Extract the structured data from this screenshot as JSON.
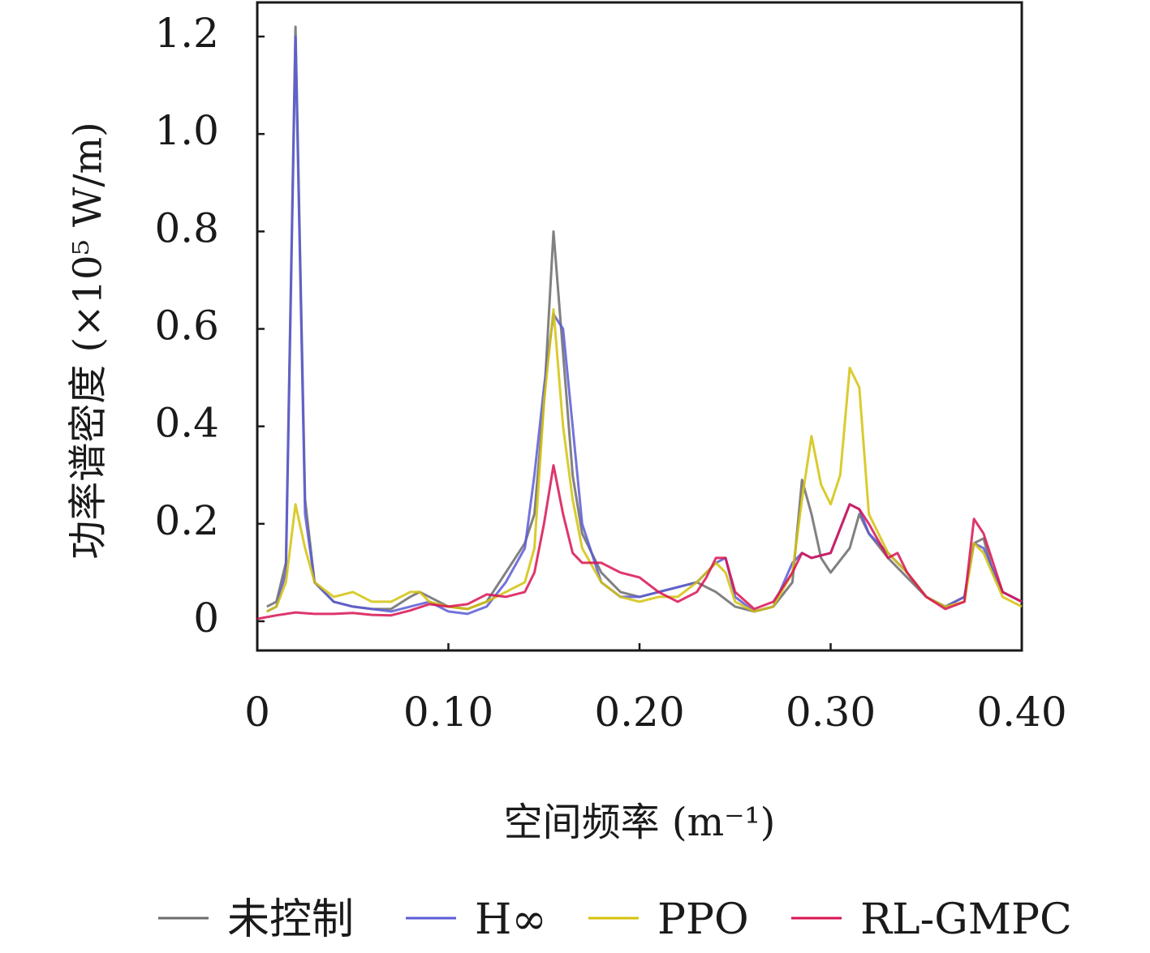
{
  "chart_data": {
    "type": "line",
    "xlabel": "空间频率 (m⁻¹)",
    "ylabel": "功率谱密度 (×10⁵ W/m)",
    "xlim": [
      0,
      0.4
    ],
    "ylim": [
      -0.06,
      1.27
    ],
    "xticks": [
      0,
      0.1,
      0.2,
      0.3,
      0.4
    ],
    "xtick_labels": [
      "0",
      "0.10",
      "0.20",
      "0.30",
      "0.40"
    ],
    "yticks": [
      0,
      0.2,
      0.4,
      0.6,
      0.8,
      1.0,
      1.2
    ],
    "ytick_labels": [
      "0",
      "0.2",
      "0.4",
      "0.6",
      "0.8",
      "1.0",
      "1.2"
    ],
    "grid": false,
    "legend_position": "bottom",
    "series": [
      {
        "name": "未控制",
        "color": "#6b6b6b",
        "points": [
          [
            0.005,
            0.03
          ],
          [
            0.01,
            0.04
          ],
          [
            0.015,
            0.12
          ],
          [
            0.02,
            1.22
          ],
          [
            0.025,
            0.25
          ],
          [
            0.03,
            0.08
          ],
          [
            0.04,
            0.04
          ],
          [
            0.05,
            0.03
          ],
          [
            0.06,
            0.025
          ],
          [
            0.07,
            0.025
          ],
          [
            0.08,
            0.05
          ],
          [
            0.085,
            0.06
          ],
          [
            0.09,
            0.05
          ],
          [
            0.1,
            0.03
          ],
          [
            0.11,
            0.025
          ],
          [
            0.12,
            0.04
          ],
          [
            0.13,
            0.1
          ],
          [
            0.14,
            0.16
          ],
          [
            0.145,
            0.22
          ],
          [
            0.15,
            0.45
          ],
          [
            0.155,
            0.8
          ],
          [
            0.16,
            0.55
          ],
          [
            0.165,
            0.3
          ],
          [
            0.17,
            0.18
          ],
          [
            0.18,
            0.1
          ],
          [
            0.19,
            0.06
          ],
          [
            0.2,
            0.05
          ],
          [
            0.21,
            0.06
          ],
          [
            0.22,
            0.07
          ],
          [
            0.23,
            0.08
          ],
          [
            0.24,
            0.06
          ],
          [
            0.25,
            0.03
          ],
          [
            0.26,
            0.02
          ],
          [
            0.27,
            0.03
          ],
          [
            0.28,
            0.08
          ],
          [
            0.285,
            0.29
          ],
          [
            0.29,
            0.22
          ],
          [
            0.295,
            0.13
          ],
          [
            0.3,
            0.1
          ],
          [
            0.31,
            0.15
          ],
          [
            0.315,
            0.22
          ],
          [
            0.32,
            0.18
          ],
          [
            0.33,
            0.13
          ],
          [
            0.34,
            0.09
          ],
          [
            0.35,
            0.05
          ],
          [
            0.36,
            0.03
          ],
          [
            0.37,
            0.05
          ],
          [
            0.375,
            0.16
          ],
          [
            0.38,
            0.17
          ],
          [
            0.385,
            0.1
          ],
          [
            0.39,
            0.06
          ],
          [
            0.4,
            0.04
          ]
        ]
      },
      {
        "name": "H∞",
        "color": "#5b5bd6",
        "points": [
          [
            0.005,
            0.02
          ],
          [
            0.01,
            0.03
          ],
          [
            0.015,
            0.1
          ],
          [
            0.02,
            1.2
          ],
          [
            0.025,
            0.22
          ],
          [
            0.03,
            0.08
          ],
          [
            0.04,
            0.04
          ],
          [
            0.05,
            0.03
          ],
          [
            0.06,
            0.025
          ],
          [
            0.07,
            0.02
          ],
          [
            0.08,
            0.03
          ],
          [
            0.09,
            0.04
          ],
          [
            0.1,
            0.02
          ],
          [
            0.11,
            0.015
          ],
          [
            0.12,
            0.03
          ],
          [
            0.13,
            0.08
          ],
          [
            0.14,
            0.15
          ],
          [
            0.145,
            0.3
          ],
          [
            0.15,
            0.48
          ],
          [
            0.155,
            0.63
          ],
          [
            0.16,
            0.6
          ],
          [
            0.165,
            0.4
          ],
          [
            0.17,
            0.2
          ],
          [
            0.18,
            0.08
          ],
          [
            0.19,
            0.05
          ],
          [
            0.2,
            0.05
          ],
          [
            0.21,
            0.06
          ],
          [
            0.22,
            0.07
          ],
          [
            0.23,
            0.08
          ],
          [
            0.24,
            0.12
          ],
          [
            0.245,
            0.13
          ],
          [
            0.25,
            0.05
          ],
          [
            0.26,
            0.02
          ],
          [
            0.27,
            0.03
          ],
          [
            0.28,
            0.12
          ],
          [
            0.285,
            0.14
          ],
          [
            0.29,
            0.13
          ],
          [
            0.3,
            0.14
          ],
          [
            0.31,
            0.24
          ],
          [
            0.315,
            0.23
          ],
          [
            0.32,
            0.18
          ],
          [
            0.33,
            0.14
          ],
          [
            0.34,
            0.1
          ],
          [
            0.35,
            0.05
          ],
          [
            0.36,
            0.03
          ],
          [
            0.37,
            0.05
          ],
          [
            0.375,
            0.16
          ],
          [
            0.38,
            0.15
          ],
          [
            0.39,
            0.06
          ],
          [
            0.4,
            0.04
          ]
        ]
      },
      {
        "name": "PPO",
        "color": "#d4c20a",
        "points": [
          [
            0.005,
            0.02
          ],
          [
            0.01,
            0.03
          ],
          [
            0.015,
            0.08
          ],
          [
            0.02,
            0.24
          ],
          [
            0.025,
            0.15
          ],
          [
            0.03,
            0.08
          ],
          [
            0.04,
            0.05
          ],
          [
            0.05,
            0.06
          ],
          [
            0.06,
            0.04
          ],
          [
            0.07,
            0.04
          ],
          [
            0.08,
            0.06
          ],
          [
            0.085,
            0.06
          ],
          [
            0.09,
            0.04
          ],
          [
            0.1,
            0.03
          ],
          [
            0.11,
            0.025
          ],
          [
            0.12,
            0.04
          ],
          [
            0.13,
            0.06
          ],
          [
            0.14,
            0.08
          ],
          [
            0.145,
            0.15
          ],
          [
            0.15,
            0.45
          ],
          [
            0.155,
            0.64
          ],
          [
            0.16,
            0.4
          ],
          [
            0.165,
            0.25
          ],
          [
            0.17,
            0.15
          ],
          [
            0.18,
            0.08
          ],
          [
            0.19,
            0.05
          ],
          [
            0.2,
            0.04
          ],
          [
            0.21,
            0.05
          ],
          [
            0.22,
            0.05
          ],
          [
            0.23,
            0.08
          ],
          [
            0.235,
            0.1
          ],
          [
            0.24,
            0.12
          ],
          [
            0.245,
            0.1
          ],
          [
            0.25,
            0.04
          ],
          [
            0.26,
            0.02
          ],
          [
            0.27,
            0.03
          ],
          [
            0.28,
            0.1
          ],
          [
            0.285,
            0.25
          ],
          [
            0.29,
            0.38
          ],
          [
            0.295,
            0.28
          ],
          [
            0.3,
            0.24
          ],
          [
            0.305,
            0.3
          ],
          [
            0.31,
            0.52
          ],
          [
            0.315,
            0.48
          ],
          [
            0.32,
            0.22
          ],
          [
            0.33,
            0.14
          ],
          [
            0.34,
            0.1
          ],
          [
            0.35,
            0.05
          ],
          [
            0.36,
            0.03
          ],
          [
            0.37,
            0.04
          ],
          [
            0.375,
            0.16
          ],
          [
            0.38,
            0.14
          ],
          [
            0.39,
            0.05
          ],
          [
            0.4,
            0.03
          ]
        ]
      },
      {
        "name": "RL-GMPC",
        "color": "#d81352",
        "points": [
          [
            0.0,
            0.005
          ],
          [
            0.01,
            0.012
          ],
          [
            0.02,
            0.018
          ],
          [
            0.03,
            0.015
          ],
          [
            0.04,
            0.015
          ],
          [
            0.05,
            0.017
          ],
          [
            0.06,
            0.013
          ],
          [
            0.07,
            0.012
          ],
          [
            0.08,
            0.022
          ],
          [
            0.09,
            0.035
          ],
          [
            0.1,
            0.03
          ],
          [
            0.11,
            0.035
          ],
          [
            0.12,
            0.055
          ],
          [
            0.13,
            0.05
          ],
          [
            0.14,
            0.06
          ],
          [
            0.145,
            0.1
          ],
          [
            0.15,
            0.2
          ],
          [
            0.155,
            0.32
          ],
          [
            0.16,
            0.22
          ],
          [
            0.165,
            0.14
          ],
          [
            0.17,
            0.12
          ],
          [
            0.18,
            0.12
          ],
          [
            0.19,
            0.1
          ],
          [
            0.2,
            0.09
          ],
          [
            0.21,
            0.06
          ],
          [
            0.22,
            0.04
          ],
          [
            0.23,
            0.06
          ],
          [
            0.235,
            0.09
          ],
          [
            0.24,
            0.13
          ],
          [
            0.245,
            0.13
          ],
          [
            0.25,
            0.06
          ],
          [
            0.26,
            0.025
          ],
          [
            0.27,
            0.04
          ],
          [
            0.28,
            0.1
          ],
          [
            0.285,
            0.14
          ],
          [
            0.29,
            0.13
          ],
          [
            0.3,
            0.14
          ],
          [
            0.31,
            0.24
          ],
          [
            0.315,
            0.23
          ],
          [
            0.32,
            0.2
          ],
          [
            0.33,
            0.13
          ],
          [
            0.335,
            0.14
          ],
          [
            0.34,
            0.1
          ],
          [
            0.35,
            0.05
          ],
          [
            0.36,
            0.025
          ],
          [
            0.37,
            0.04
          ],
          [
            0.375,
            0.21
          ],
          [
            0.38,
            0.18
          ],
          [
            0.39,
            0.06
          ],
          [
            0.4,
            0.04
          ]
        ]
      }
    ]
  }
}
